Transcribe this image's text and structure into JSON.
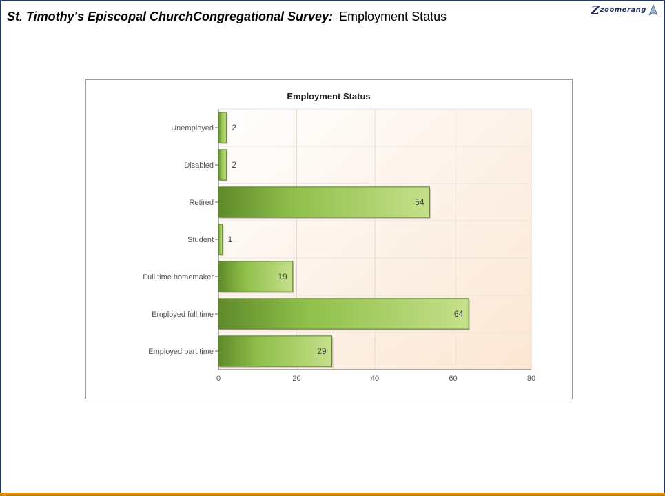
{
  "slide": {
    "title_bold": "St. Timothy's Episcopal ChurchCongregational Survey:",
    "title_rest": "Employment Status"
  },
  "logo": {
    "text": "zoomerang",
    "icon": "zoomerang-swoosh-icon"
  },
  "chart_data": {
    "type": "bar",
    "orientation": "horizontal",
    "title": "Employment Status",
    "categories": [
      "Unemployed",
      "Disabled",
      "Retired",
      "Student",
      "Full time homemaker",
      "Employed full time",
      "Employed part time"
    ],
    "values": [
      2,
      2,
      54,
      1,
      19,
      64,
      29
    ],
    "value_labels": [
      "2",
      "2",
      "54",
      "1",
      "19",
      "64",
      "29"
    ],
    "xlim": [
      0,
      80
    ],
    "xticks": [
      0,
      20,
      40,
      60,
      80
    ],
    "xtick_labels": [
      "0",
      "20",
      "40",
      "60",
      "80"
    ],
    "xlabel": "",
    "ylabel": "",
    "grid": true,
    "bar_color": "#8fbf4a",
    "background_gradient": [
      "#ffffff",
      "#fbe9d8"
    ]
  }
}
